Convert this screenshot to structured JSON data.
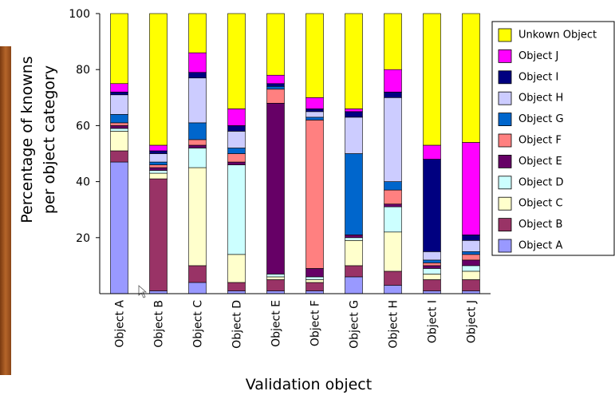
{
  "chart_data": {
    "type": "stacked_bar",
    "x_label": "Validation object",
    "y_label": [
      "Percentage of knowns",
      "per object category"
    ],
    "categories": [
      "Object A",
      "Object B",
      "Object C",
      "Object D",
      "Object E",
      "Object F",
      "Object G",
      "Object H",
      "Object I",
      "Object J"
    ],
    "series": [
      {
        "name": "Object A",
        "color": "#9999ff",
        "values": [
          47,
          1,
          4,
          1,
          1,
          1,
          6,
          3,
          1,
          1
        ]
      },
      {
        "name": "Object B",
        "color": "#993366",
        "values": [
          4,
          40,
          6,
          3,
          4,
          3,
          4,
          5,
          4,
          4
        ]
      },
      {
        "name": "Object C",
        "color": "#ffffcc",
        "values": [
          7,
          2,
          35,
          10,
          1,
          1,
          9,
          14,
          2,
          3
        ]
      },
      {
        "name": "Object D",
        "color": "#ccffff",
        "values": [
          1,
          1,
          7,
          32,
          1,
          1,
          1,
          9,
          2,
          2
        ]
      },
      {
        "name": "Object E",
        "color": "#660066",
        "values": [
          1,
          1,
          1,
          1,
          61,
          3,
          1,
          1,
          1,
          2
        ]
      },
      {
        "name": "Object F",
        "color": "#ff8080",
        "values": [
          1,
          1,
          2,
          3,
          5,
          53,
          0,
          5,
          1,
          2
        ]
      },
      {
        "name": "Object G",
        "color": "#0066cc",
        "values": [
          3,
          1,
          6,
          2,
          1,
          1,
          29,
          3,
          1,
          1
        ]
      },
      {
        "name": "Object H",
        "color": "#ccccff",
        "values": [
          7,
          3,
          16,
          6,
          0,
          2,
          13,
          30,
          3,
          4
        ]
      },
      {
        "name": "Object I",
        "color": "#000080",
        "values": [
          1,
          1,
          2,
          2,
          1,
          1,
          2,
          2,
          33,
          2
        ]
      },
      {
        "name": "Object J",
        "color": "#ff00ff",
        "values": [
          3,
          2,
          7,
          6,
          3,
          4,
          1,
          8,
          5,
          33
        ]
      },
      {
        "name": "Unkown Object",
        "color": "#ffff00",
        "values": [
          25,
          47,
          14,
          34,
          22,
          30,
          34,
          20,
          47,
          46
        ]
      }
    ],
    "ylim": [
      0,
      100
    ],
    "yticks": [
      20,
      40,
      60,
      80,
      100
    ],
    "grid": false,
    "legend": "right"
  }
}
